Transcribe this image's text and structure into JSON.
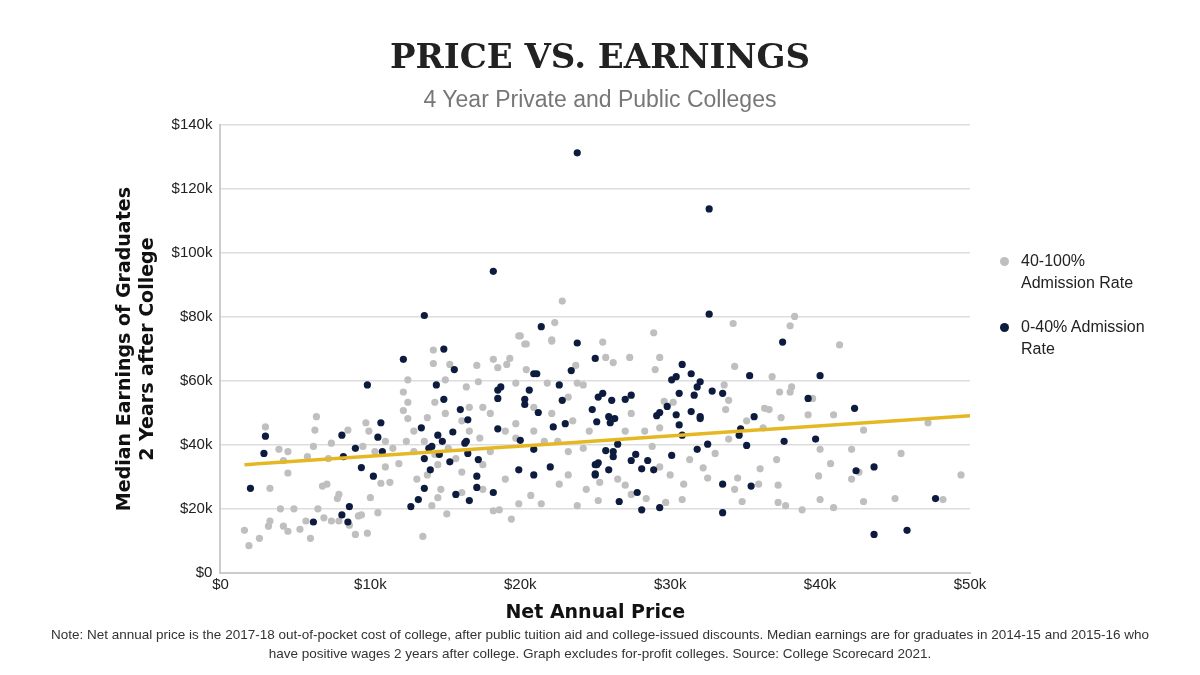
{
  "chart_data": {
    "type": "scatter",
    "title": "PRICE VS. EARNINGS",
    "subtitle": "4 Year Private and Public Colleges",
    "xlabel": "Net Annual Price",
    "ylabel": "Median Earnings of Graduates 2 Years after College",
    "xlim": [
      0,
      50
    ],
    "xticks": [
      {
        "value": 0,
        "label": "$0"
      },
      {
        "value": 10,
        "label": "$10k"
      },
      {
        "value": 20,
        "label": "$20k"
      },
      {
        "value": 30,
        "label": "$30k"
      },
      {
        "value": 40,
        "label": "$40k"
      },
      {
        "value": 50,
        "label": "$50k"
      }
    ],
    "ylim": [
      0,
      140
    ],
    "yticks": [
      {
        "value": 0,
        "label": "$0"
      },
      {
        "value": 20,
        "label": "$20k"
      },
      {
        "value": 40,
        "label": "$40k"
      },
      {
        "value": 60,
        "label": "$60k"
      },
      {
        "value": 80,
        "label": "$80k"
      },
      {
        "value": 100,
        "label": "$100k"
      },
      {
        "value": 120,
        "label": "$120k"
      },
      {
        "value": 140,
        "label": "$140k"
      }
    ],
    "grid": "y",
    "legend": "right",
    "marker": "circle",
    "series": [
      {
        "name": "40-100% Admission Rate",
        "color": "#bfbfbf",
        "x": [
          22.8,
          22.3,
          20.0,
          20.3,
          22.1,
          25.5,
          28.9,
          34.2,
          38.0,
          38.3,
          41.3,
          34.3,
          36.8,
          37.3,
          38.0,
          38.1,
          39.5,
          40.9,
          42.9,
          47.2,
          49.4,
          48.2,
          45.0,
          45.4,
          42.9,
          42.1,
          42.6,
          42.1,
          40.9,
          40.0,
          39.9,
          40.0,
          40.7,
          38.8,
          37.7,
          37.2,
          37.2,
          37.1,
          37.4,
          39.2,
          36.0,
          35.9,
          34.8,
          34.5,
          34.3,
          33.0,
          32.5,
          33.7,
          33.9,
          33.6,
          36.3,
          36.6,
          36.2,
          35.1,
          33.9,
          30.8,
          29.7,
          28.4,
          27.4,
          25.2,
          30.9,
          32.2,
          31.3,
          30.0,
          29.3,
          28.8,
          28.3,
          29.3,
          29.6,
          30.2,
          29.0,
          29.3,
          27.3,
          26.2,
          25.7,
          27.4,
          27.0,
          26.5,
          27.0,
          25.3,
          1.6,
          1.9,
          2.6,
          3.2,
          3.3,
          3.3,
          3.0,
          3.9,
          4.5,
          4.2,
          4.5,
          4.0,
          4.9,
          4.2,
          4.5,
          5.3,
          5.7,
          6.0,
          5.8,
          6.4,
          6.3,
          6.2,
          6.5,
          6.8,
          6.9,
          7.1,
          7.4,
          7.8,
          7.9,
          7.9,
          7.4,
          7.2,
          8.5,
          8.6,
          9.0,
          9.2,
          9.4,
          9.8,
          9.7,
          9.9,
          10.0,
          10.5,
          11.0,
          10.7,
          11.3,
          11.9,
          12.2,
          12.5,
          12.5,
          12.2,
          12.5,
          13.5,
          14.1,
          14.5,
          14.2,
          14.2,
          15.3,
          15.1,
          14.7,
          13.8,
          13.1,
          12.9,
          12.4,
          11.5,
          11.0,
          10.3,
          9.5,
          13.8,
          14.3,
          15.0,
          16.1,
          16.4,
          17.1,
          17.2,
          17.5,
          18.2,
          18.5,
          19.1,
          19.3,
          19.7,
          19.9,
          20.4,
          20.4,
          22.1,
          21.8,
          23.7,
          24.2,
          23.8,
          16.1,
          17.5,
          18.6,
          19.4,
          18.2,
          19.9,
          20.7,
          21.4,
          23.8,
          24.4,
          22.6,
          23.2,
          19.0,
          17.5,
          18.0,
          19.0,
          19.7,
          20.9,
          21.6,
          22.5,
          23.2,
          24.2,
          24.6,
          23.5,
          22.1,
          20.9,
          19.7,
          17.3,
          16.6,
          15.2,
          15.7,
          14.5,
          16.1,
          12.9,
          13.6,
          14.3,
          16.6,
          18.0,
          15.0,
          23.2
        ],
        "values": [
          85.0,
          78.3,
          74.1,
          71.6,
          72.9,
          72.2,
          75.1,
          78.0,
          77.3,
          80.2,
          71.3,
          64.6,
          61.4,
          56.6,
          56.6,
          58.2,
          54.6,
          49.5,
          44.7,
          47.0,
          30.7,
          23.0,
          23.3,
          37.4,
          22.4,
          38.7,
          31.6,
          29.4,
          20.5,
          23.0,
          30.4,
          38.7,
          34.2,
          19.8,
          21.1,
          22.1,
          27.5,
          35.5,
          48.6,
          49.5,
          32.6,
          27.8,
          22.4,
          29.7,
          26.2,
          37.4,
          29.7,
          51.1,
          54.0,
          58.8,
          51.5,
          51.1,
          45.4,
          47.6,
          41.9,
          23.0,
          22.1,
          23.3,
          24.6,
          22.7,
          27.8,
          32.9,
          35.5,
          30.7,
          33.2,
          39.6,
          44.4,
          45.4,
          53.7,
          53.4,
          63.6,
          67.4,
          67.4,
          65.8,
          67.4,
          49.9,
          44.4,
          29.4,
          27.5,
          28.4,
          13.4,
          8.6,
          10.9,
          14.7,
          16.3,
          26.5,
          45.7,
          38.7,
          38.0,
          35.2,
          31.3,
          20.1,
          20.1,
          14.7,
          13.1,
          13.7,
          16.3,
          10.9,
          36.4,
          48.9,
          44.7,
          39.6,
          20.1,
          27.2,
          17.3,
          27.8,
          16.3,
          23.3,
          16.3,
          24.6,
          40.6,
          35.8,
          44.7,
          15.0,
          12.1,
          17.9,
          18.2,
          12.5,
          47.0,
          44.4,
          23.6,
          18.9,
          33.2,
          28.1,
          28.4,
          34.2,
          56.6,
          60.4,
          53.4,
          50.8,
          48.3,
          11.5,
          21.1,
          23.6,
          69.7,
          65.5,
          65.2,
          18.5,
          26.2,
          30.7,
          29.4,
          38.0,
          41.2,
          39.0,
          41.2,
          38.0,
          39.6,
          48.6,
          53.4,
          49.9,
          47.6,
          58.2,
          64.9,
          59.8,
          51.8,
          66.8,
          64.2,
          65.2,
          67.1,
          59.4,
          74.1,
          71.6,
          63.6,
          72.5,
          59.4,
          64.9,
          58.8,
          59.4,
          25.2,
          26.2,
          19.8,
          16.9,
          19.5,
          21.7,
          24.3,
          21.7,
          21.1,
          26.2,
          27.8,
          30.7,
          29.4,
          33.9,
          38.0,
          44.4,
          42.2,
          44.4,
          41.2,
          41.2,
          38.0,
          39.0,
          44.4,
          47.6,
          49.9,
          51.8,
          46.7,
          42.2,
          44.4,
          39.0,
          35.8,
          33.9,
          31.6,
          44.4,
          41.2,
          37.1,
          51.8,
          49.9,
          60.4,
          55.0
        ]
      },
      {
        "name": "0-40% Admission Rate",
        "color": "#0d1b3e",
        "x": [
          23.8,
          32.6,
          18.2,
          13.6,
          32.6,
          21.4,
          12.2,
          9.8,
          3.0,
          2.9,
          2.0,
          6.2,
          8.1,
          8.5,
          8.6,
          8.1,
          8.2,
          9.0,
          9.4,
          10.2,
          10.5,
          10.7,
          10.8,
          12.7,
          13.2,
          13.4,
          13.6,
          13.6,
          14.0,
          13.9,
          14.1,
          14.4,
          14.5,
          14.8,
          14.6,
          14.9,
          14.9,
          15.3,
          15.6,
          15.5,
          15.7,
          16.0,
          16.3,
          16.4,
          16.5,
          16.5,
          16.6,
          17.1,
          17.2,
          17.1,
          18.2,
          18.5,
          18.5,
          18.7,
          18.5,
          20.0,
          19.9,
          20.3,
          20.3,
          20.6,
          20.9,
          21.1,
          20.9,
          20.9,
          21.2,
          22.0,
          22.2,
          22.6,
          22.8,
          23.0,
          23.4,
          23.8,
          24.8,
          25.0,
          25.0,
          37.5,
          35.3,
          40.0,
          25.0,
          30.8,
          31.4,
          30.1,
          30.4,
          32.0,
          31.8,
          32.8,
          33.5,
          30.6,
          31.6,
          29.8,
          29.3,
          29.1,
          30.4,
          31.4,
          32.0,
          32.0,
          30.6,
          30.8,
          27.0,
          27.4,
          25.2,
          25.5,
          26.1,
          25.9,
          26.0,
          26.3,
          25.1,
          26.5,
          25.7,
          26.2,
          26.2,
          25.2,
          25.1,
          25.0,
          25.9,
          27.4,
          27.7,
          28.5,
          28.1,
          28.9,
          27.8,
          26.6,
          28.1,
          29.3,
          30.1,
          31.8,
          32.5,
          33.5,
          33.5,
          34.6,
          34.7,
          35.1,
          35.4,
          35.6,
          37.6,
          39.2,
          39.7,
          42.3,
          42.4,
          43.6,
          43.6,
          45.8,
          47.7
        ],
        "values": [
          131.3,
          113.8,
          94.3,
          80.5,
          80.9,
          77.0,
          66.8,
          58.8,
          42.8,
          37.4,
          26.5,
          16.0,
          18.2,
          16.0,
          20.8,
          43.1,
          36.4,
          39.0,
          33.0,
          30.3,
          42.5,
          47.0,
          38.0,
          20.8,
          23.0,
          45.4,
          26.5,
          35.8,
          32.3,
          39.0,
          39.6,
          58.8,
          43.1,
          41.2,
          37.1,
          54.3,
          70.0,
          34.8,
          63.6,
          44.1,
          24.6,
          51.1,
          40.6,
          41.2,
          47.9,
          37.4,
          22.7,
          30.3,
          35.5,
          26.8,
          25.2,
          54.6,
          57.2,
          58.2,
          45.1,
          41.5,
          32.3,
          52.7,
          54.3,
          57.2,
          62.3,
          62.3,
          38.7,
          30.7,
          50.2,
          33.2,
          45.7,
          58.8,
          54.0,
          46.7,
          63.3,
          71.9,
          51.1,
          30.7,
          33.9,
          72.2,
          61.7,
          61.7,
          67.1,
          65.2,
          62.3,
          60.4,
          61.4,
          59.8,
          58.2,
          56.9,
          56.2,
          56.2,
          55.6,
          52.1,
          50.2,
          49.2,
          49.5,
          50.5,
          48.9,
          48.3,
          46.3,
          43.1,
          54.3,
          55.6,
          55.0,
          56.2,
          54.0,
          48.9,
          47.0,
          48.3,
          47.3,
          40.3,
          38.3,
          38.0,
          36.4,
          34.5,
          33.9,
          31.0,
          32.3,
          35.2,
          37.1,
          35.2,
          32.6,
          32.3,
          25.2,
          22.4,
          19.8,
          20.5,
          36.8,
          38.7,
          40.3,
          27.8,
          18.9,
          43.1,
          45.1,
          39.9,
          27.2,
          48.9,
          41.2,
          54.6,
          41.9,
          51.5,
          32.0,
          33.2,
          12.1,
          13.4,
          23.3
        ]
      },
      {
        "color": "#e5b722",
        "type": "line",
        "marker": "none",
        "x": [
          1.6,
          50
        ],
        "values": [
          33.9,
          49.2
        ]
      }
    ],
    "annotations": [
      "Note: Net annual price is the 2017-18 out-of-pocket cost of college, after public tuition aid and college-issued discounts. Median earnings are for graduates in 2014-15 and 2015-16 who have positive wages 2 years after college. Graph excludes for-profit colleges. Source: College Scorecard 2021."
    ]
  }
}
